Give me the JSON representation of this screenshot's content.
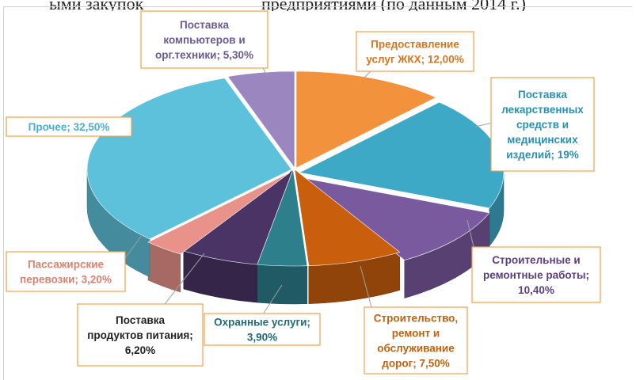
{
  "caption_fragment": {
    "left": "ыми закупок",
    "right": "предприятиями (по данным 2014 г.)"
  },
  "chart_data": {
    "type": "pie",
    "title": "",
    "style": "3d-exploded",
    "series": [
      {
        "name": "Предоставление услуг ЖКХ",
        "value": 12.0,
        "label": [
          "Предоставление",
          "услуг ЖКХ; 12,00%"
        ],
        "color": "#f3923c",
        "label_color": "#d97520"
      },
      {
        "name": "Поставка лекарственных средств и медицинских изделий",
        "value": 19.0,
        "label": [
          "Поставка",
          "лекарственных",
          "средств и",
          "медицинских",
          "изделий; 19%"
        ],
        "color": "#3ea8c7",
        "label_color": "#2a90b0"
      },
      {
        "name": "Строительные и ремонтные работы",
        "value": 10.4,
        "label": [
          "Строительные и",
          "ремонтные работы;",
          "10,40%"
        ],
        "color": "#7a5a9e",
        "label_color": "#5b3f80"
      },
      {
        "name": "Строительство, ремонт и обслуживание дорог",
        "value": 7.5,
        "label": [
          "Строительство,",
          "ремонт и",
          "обслуживание",
          "дорог; 7,50%"
        ],
        "color": "#c95f0c",
        "label_color": "#c0620f"
      },
      {
        "name": "Охранные услуги",
        "value": 3.9,
        "label": [
          "Охранные услуги;",
          "3,90%"
        ],
        "color": "#2d7f8c",
        "label_color": "#1f6b78"
      },
      {
        "name": "Поставка продуктов питания",
        "value": 6.2,
        "label": [
          "Поставка",
          "продуктов питания;",
          "6,20%"
        ],
        "color": "#4a3466",
        "label_color": "#222222"
      },
      {
        "name": "Пассажирские перевозки",
        "value": 3.2,
        "label": [
          "Пассажирские",
          "перевозки; 3,20%"
        ],
        "color": "#e8928a",
        "label_color": "#d9806f"
      },
      {
        "name": "Прочее",
        "value": 32.5,
        "label": [
          "Прочее; 32,50%"
        ],
        "color": "#5ec1dc",
        "label_color": "#4ab0cf"
      },
      {
        "name": "Поставка компьютеров и орг.техники",
        "value": 5.3,
        "label": [
          "Поставка",
          "компьютеров и",
          "орг.техники; 5,30%"
        ],
        "color": "#9b86c0",
        "label_color": "#6b5a92"
      }
    ]
  }
}
